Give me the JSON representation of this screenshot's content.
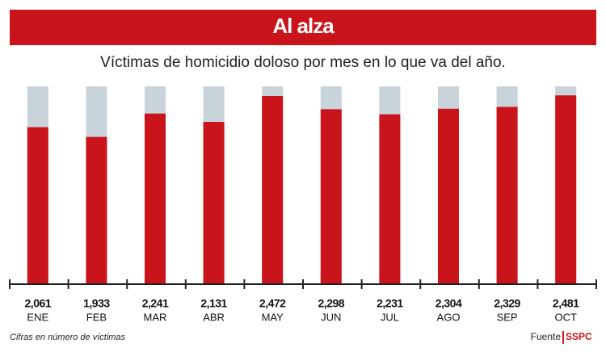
{
  "chart_data": {
    "type": "bar",
    "title": "Al alza",
    "subtitle": "Víctimas de homicidio doloso por mes en lo que va del año.",
    "categories": [
      "ENE",
      "FEB",
      "MAR",
      "ABR",
      "MAY",
      "JUN",
      "JUL",
      "AGO",
      "SEP",
      "OCT"
    ],
    "values": [
      2061,
      1933,
      2241,
      2131,
      2472,
      2298,
      2231,
      2304,
      2329,
      2481
    ],
    "value_labels": [
      "2,061",
      "1,933",
      "2,241",
      "2,131",
      "2,472",
      "2,298",
      "2,231",
      "2,304",
      "2,329",
      "2,481"
    ],
    "color": "#c8141a",
    "ylim": [
      0,
      2600
    ],
    "note": "Cifras en número de víctimas",
    "source_label": "Fuente",
    "source": "SSPC"
  }
}
